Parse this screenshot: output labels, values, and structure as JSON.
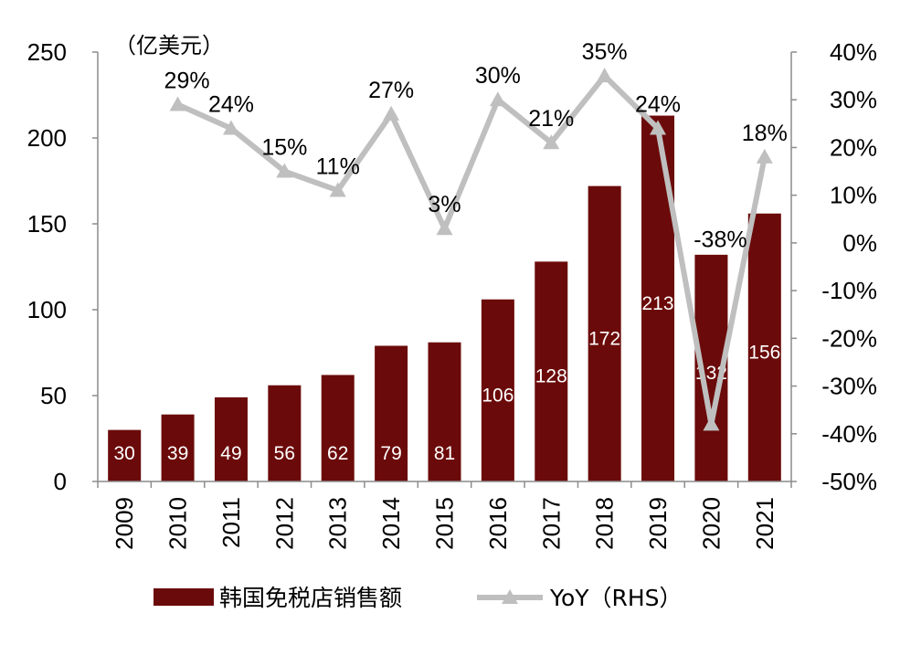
{
  "chart_data": {
    "type": "bar",
    "categories": [
      "2009",
      "2010",
      "2011",
      "2012",
      "2013",
      "2014",
      "2015",
      "2016",
      "2017",
      "2018",
      "2019",
      "2020",
      "2021"
    ],
    "series": [
      {
        "name": "韩国免税店销售额",
        "type": "bar",
        "axis": "left",
        "values": [
          30,
          39,
          49,
          56,
          62,
          79,
          81,
          106,
          128,
          172,
          213,
          132,
          156
        ],
        "labels": [
          "30",
          "39",
          "49",
          "56",
          "62",
          "79",
          "81",
          "106",
          "128",
          "172",
          "213",
          "132",
          "156"
        ]
      },
      {
        "name": "YoY（RHS）",
        "type": "line",
        "axis": "right",
        "values": [
          null,
          29,
          24,
          15,
          11,
          27,
          3,
          30,
          21,
          35,
          24,
          -38,
          18
        ],
        "labels": [
          "",
          "29%",
          "24%",
          "15%",
          "11%",
          "27%",
          "3%",
          "30%",
          "21%",
          "35%",
          "24%",
          "-38%",
          "18%"
        ]
      }
    ],
    "ylabel": "（亿美元）",
    "ylim": [
      0,
      250
    ],
    "y_ticks": [
      "0",
      "50",
      "100",
      "150",
      "200",
      "250"
    ],
    "y2lim": [
      -50,
      40
    ],
    "y2_ticks": [
      "-50%",
      "-40%",
      "-30%",
      "-20%",
      "-10%",
      "0%",
      "10%",
      "20%",
      "30%",
      "40%"
    ],
    "legend_position": "bottom",
    "grid": false,
    "colors": {
      "bar": "#6B0A0A",
      "line": "#BFBFBF",
      "axis": "#8C8C8C"
    }
  }
}
